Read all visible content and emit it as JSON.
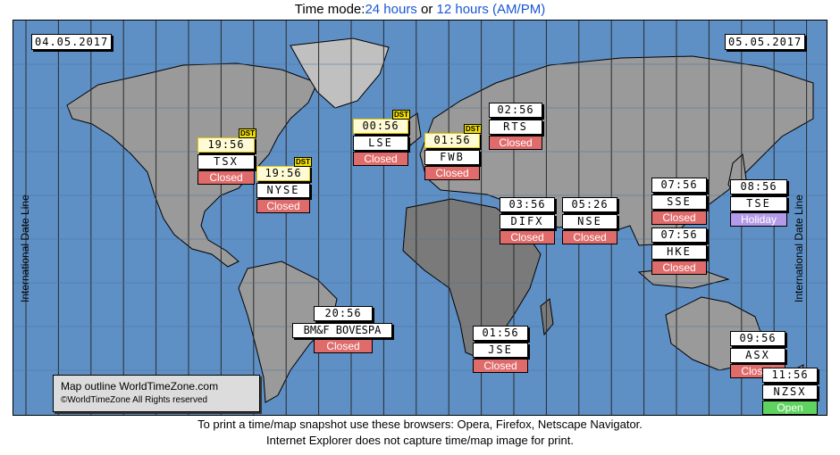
{
  "header": {
    "prefix": "Time mode:",
    "mode24": "24 hours",
    "or": " or ",
    "mode12": "12 hours (AM/PM)"
  },
  "dates": {
    "left": "04.05.2017",
    "right": "05.05.2017"
  },
  "idl_label": "International Date Line",
  "markets": [
    {
      "key": "tsx",
      "time": "19:56",
      "dst": "DST",
      "name": "TSX",
      "status": "Closed",
      "status_kind": "closed"
    },
    {
      "key": "nyse",
      "time": "19:56",
      "dst": "DST",
      "name": "NYSE",
      "status": "Closed",
      "status_kind": "closed"
    },
    {
      "key": "lse",
      "time": "00:56",
      "dst": "DST",
      "name": "LSE",
      "status": "Closed",
      "status_kind": "closed"
    },
    {
      "key": "fwb",
      "time": "01:56",
      "dst": "DST",
      "name": "FWB",
      "status": "Closed",
      "status_kind": "closed"
    },
    {
      "key": "rts",
      "time": "02:56",
      "dst": "",
      "name": "RTS",
      "status": "Closed",
      "status_kind": "closed"
    },
    {
      "key": "difx",
      "time": "03:56",
      "dst": "",
      "name": "DIFX",
      "status": "Closed",
      "status_kind": "closed"
    },
    {
      "key": "nse",
      "time": "05:26",
      "dst": "",
      "name": "NSE",
      "status": "Closed",
      "status_kind": "closed"
    },
    {
      "key": "sse",
      "time": "07:56",
      "dst": "",
      "name": "SSE",
      "status": "Closed",
      "status_kind": "closed"
    },
    {
      "key": "hke",
      "time": "07:56",
      "dst": "",
      "name": "HKE",
      "status": "Closed",
      "status_kind": "closed"
    },
    {
      "key": "tse",
      "time": "08:56",
      "dst": "",
      "name": "TSE",
      "status": "Holiday",
      "status_kind": "holiday"
    },
    {
      "key": "bovespa",
      "time": "20:56",
      "dst": "",
      "name": "BM&F BOVESPA",
      "status": "Closed",
      "status_kind": "closed"
    },
    {
      "key": "jse",
      "time": "01:56",
      "dst": "",
      "name": "JSE",
      "status": "Closed",
      "status_kind": "closed"
    },
    {
      "key": "asx",
      "time": "09:56",
      "dst": "",
      "name": "ASX",
      "status": "Closed",
      "status_kind": "closed"
    },
    {
      "key": "nzsx",
      "time": "11:56",
      "dst": "",
      "name": "NZSX",
      "status": "Open",
      "status_kind": "open"
    }
  ],
  "credit": {
    "line1": "Map outline WorldTimeZone.com",
    "line2": "©WorldTimeZone  All Rights reserved"
  },
  "footer": {
    "line1": "To print a time/map snapshot use these browsers: Opera, Firefox, Netscape Navigator.",
    "line2": "Internet Explorer does not capture time/map image for print."
  },
  "colors": {
    "ocean": "#5e90c6",
    "land": "#9a9a9a",
    "land_dark": "#7a7a7a",
    "land_light": "#c0c0c0",
    "closed": "#e06b6b",
    "open": "#5fd35f",
    "holiday": "#b49ae8",
    "link": "#1a57d6"
  }
}
